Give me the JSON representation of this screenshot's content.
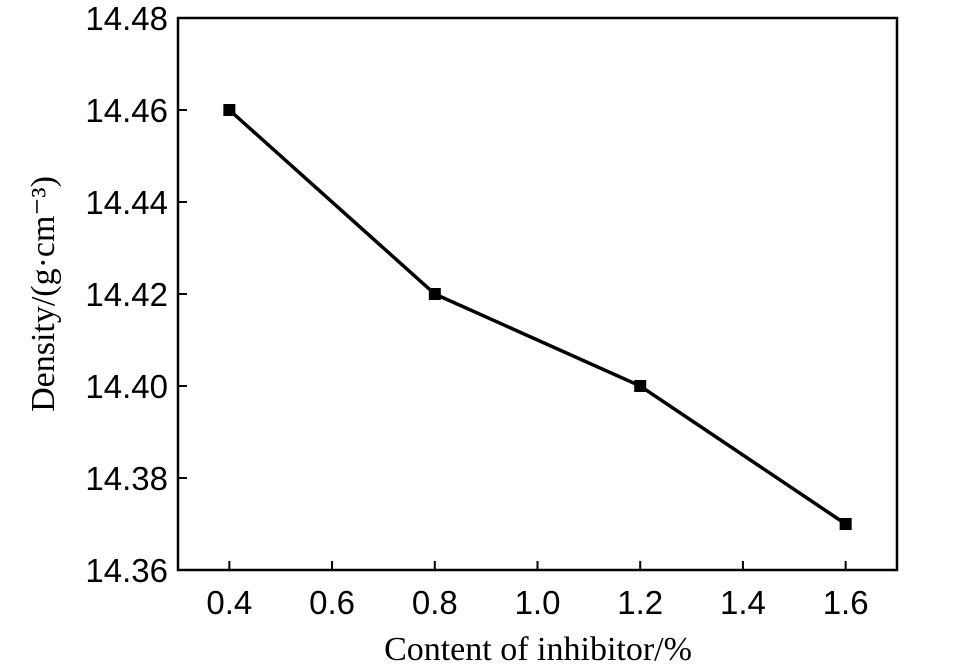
{
  "chart_data": {
    "type": "line",
    "xlabel": "Content of inhibitor/%",
    "ylabel": "Density/(g·cm⁻³)",
    "x": [
      0.4,
      0.8,
      1.2,
      1.6
    ],
    "series": [
      {
        "values": [
          14.46,
          14.42,
          14.4,
          14.37
        ]
      }
    ],
    "xlim": [
      0.3,
      1.7
    ],
    "ylim": [
      14.36,
      14.48
    ],
    "xticks": [
      "0.4",
      "0.6",
      "0.8",
      "1.0",
      "1.2",
      "1.4",
      "1.6"
    ],
    "yticks": [
      "14.36",
      "14.38",
      "14.40",
      "14.42",
      "14.44",
      "14.46",
      "14.48"
    ],
    "marker": "square",
    "grid": false,
    "line_color": "#000000"
  }
}
